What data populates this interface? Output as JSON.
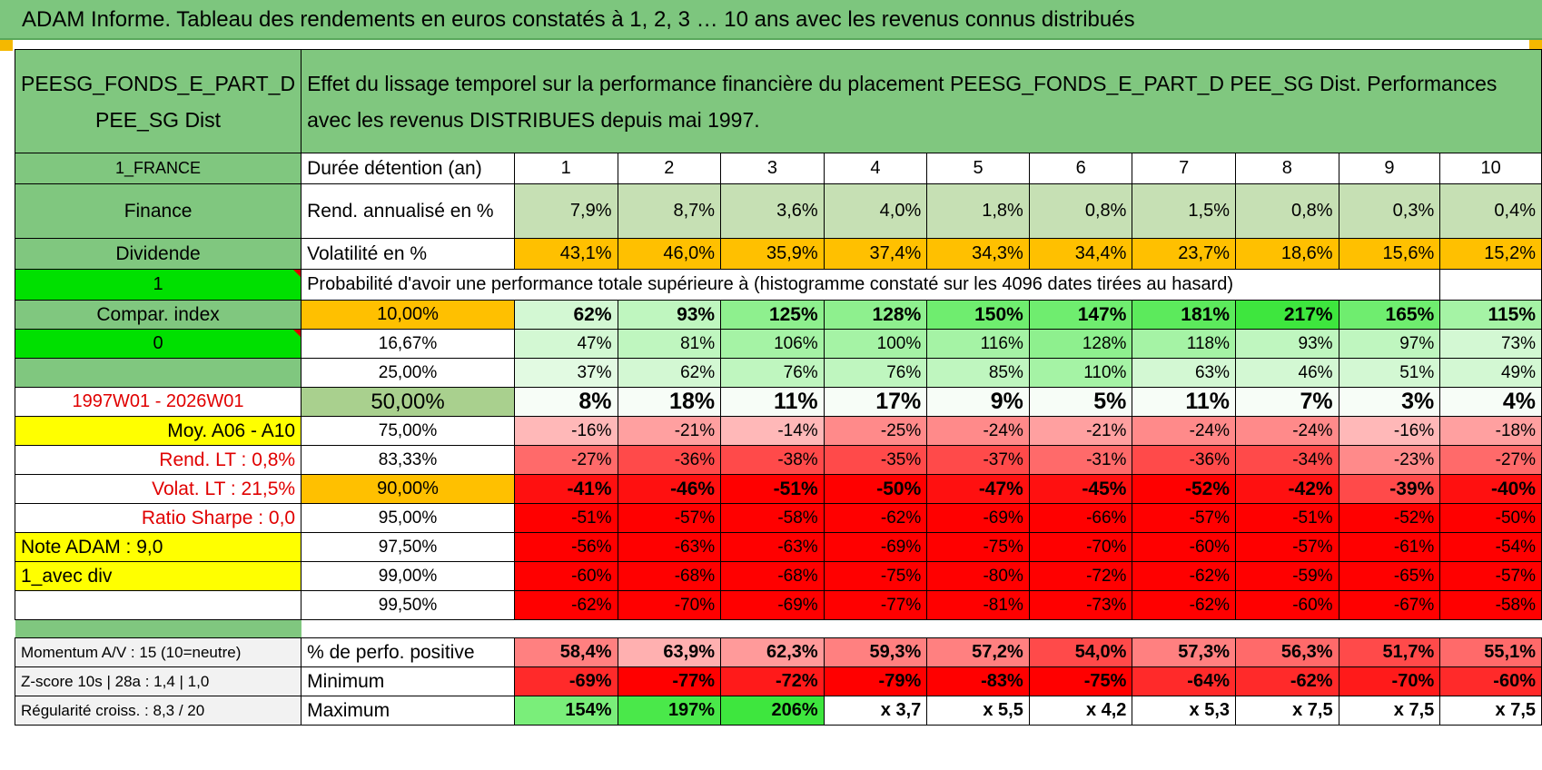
{
  "title": "ADAM Informe. Tableau des rendements en euros constatés à 1, 2, 3 … 10 ans avec les revenus connus distribués",
  "fund": {
    "name": "PEESG_FONDS_E_PART_D PEE_SG Dist",
    "description": "Effet du lissage temporel sur la performance financière du placement PEESG_FONDS_E_PART_D PEE_SG Dist. Performances avec les revenus DISTRIBUES depuis mai 1997."
  },
  "left": {
    "country": "1_FRANCE",
    "sector": "Finance",
    "type": "Dividende",
    "flag1": "1",
    "compar": "Compar. index",
    "flag0": "0",
    "period": "1997W01 - 2026W01",
    "moy": "Moy. A06 - A10",
    "rend_lt": "Rend. LT :    0,8%",
    "volat_lt": "Volat. LT :    21,5%",
    "sharpe": "Ratio Sharpe :    0,0",
    "note": "Note ADAM : 9,0",
    "div": "1_avec div"
  },
  "header": {
    "duration_label": "Durée détention (an)",
    "years": [
      "1",
      "2",
      "3",
      "4",
      "5",
      "6",
      "7",
      "8",
      "9",
      "10"
    ]
  },
  "rend_row": {
    "label": "Rend. annualisé en %",
    "values": [
      "7,9%",
      "8,7%",
      "3,6%",
      "4,0%",
      "1,8%",
      "0,8%",
      "1,5%",
      "0,8%",
      "0,3%",
      "0,4%"
    ]
  },
  "vol_row": {
    "label": "Volatilité en %",
    "values": [
      "43,1%",
      "46,0%",
      "35,9%",
      "37,4%",
      "34,3%",
      "34,4%",
      "23,7%",
      "18,6%",
      "15,6%",
      "15,2%"
    ]
  },
  "prob_title": "Probabilité d'avoir une performance totale supérieure à (histogramme constaté sur les 4096 dates tirées au hasard)",
  "prob_rows": [
    {
      "pct": "10,00%",
      "values": [
        "62%",
        "93%",
        "125%",
        "128%",
        "150%",
        "147%",
        "181%",
        "217%",
        "165%",
        "115%"
      ]
    },
    {
      "pct": "16,67%",
      "values": [
        "47%",
        "81%",
        "106%",
        "100%",
        "116%",
        "128%",
        "118%",
        "93%",
        "97%",
        "73%"
      ]
    },
    {
      "pct": "25,00%",
      "values": [
        "37%",
        "62%",
        "76%",
        "76%",
        "85%",
        "110%",
        "63%",
        "46%",
        "51%",
        "49%"
      ]
    },
    {
      "pct": "50,00%",
      "values": [
        "8%",
        "18%",
        "11%",
        "17%",
        "9%",
        "5%",
        "11%",
        "7%",
        "3%",
        "4%"
      ]
    },
    {
      "pct": "75,00%",
      "values": [
        "-16%",
        "-21%",
        "-14%",
        "-25%",
        "-24%",
        "-21%",
        "-24%",
        "-24%",
        "-16%",
        "-18%"
      ]
    },
    {
      "pct": "83,33%",
      "values": [
        "-27%",
        "-36%",
        "-38%",
        "-35%",
        "-37%",
        "-31%",
        "-36%",
        "-34%",
        "-23%",
        "-27%"
      ]
    },
    {
      "pct": "90,00%",
      "values": [
        "-41%",
        "-46%",
        "-51%",
        "-50%",
        "-47%",
        "-45%",
        "-52%",
        "-42%",
        "-39%",
        "-40%"
      ]
    },
    {
      "pct": "95,00%",
      "values": [
        "-51%",
        "-57%",
        "-58%",
        "-62%",
        "-69%",
        "-66%",
        "-57%",
        "-51%",
        "-52%",
        "-50%"
      ]
    },
    {
      "pct": "97,50%",
      "values": [
        "-56%",
        "-63%",
        "-63%",
        "-69%",
        "-75%",
        "-70%",
        "-60%",
        "-57%",
        "-61%",
        "-54%"
      ]
    },
    {
      "pct": "99,00%",
      "values": [
        "-60%",
        "-68%",
        "-68%",
        "-75%",
        "-80%",
        "-72%",
        "-62%",
        "-59%",
        "-65%",
        "-57%"
      ]
    },
    {
      "pct": "99,50%",
      "values": [
        "-62%",
        "-70%",
        "-69%",
        "-77%",
        "-81%",
        "-73%",
        "-62%",
        "-60%",
        "-67%",
        "-58%"
      ]
    }
  ],
  "bottom": [
    {
      "left": "Momentum A/V : 15 (10=neutre)",
      "label": "% de perfo. positive",
      "values": [
        "58,4%",
        "63,9%",
        "62,3%",
        "59,3%",
        "57,2%",
        "54,0%",
        "57,3%",
        "56,3%",
        "51,7%",
        "55,1%"
      ]
    },
    {
      "left": "Z-score 10s | 28a : 1,4 | 1,0",
      "label": "Minimum",
      "values": [
        "-69%",
        "-77%",
        "-72%",
        "-79%",
        "-83%",
        "-75%",
        "-64%",
        "-62%",
        "-70%",
        "-60%"
      ]
    },
    {
      "left": "Régularité croiss. : 8,3 / 20",
      "label": "Maximum",
      "values": [
        "154%",
        "197%",
        "206%",
        "x 3,7",
        "x 5,5",
        "x 4,2",
        "x 5,3",
        "x 7,5",
        "x 7,5",
        "x 7,5"
      ]
    }
  ],
  "colors": {
    "header_green": "#80c77f",
    "orange": "#ffc000",
    "yellow": "#ffff00",
    "bright_green": "#00e000",
    "red_text": "#e00000"
  }
}
